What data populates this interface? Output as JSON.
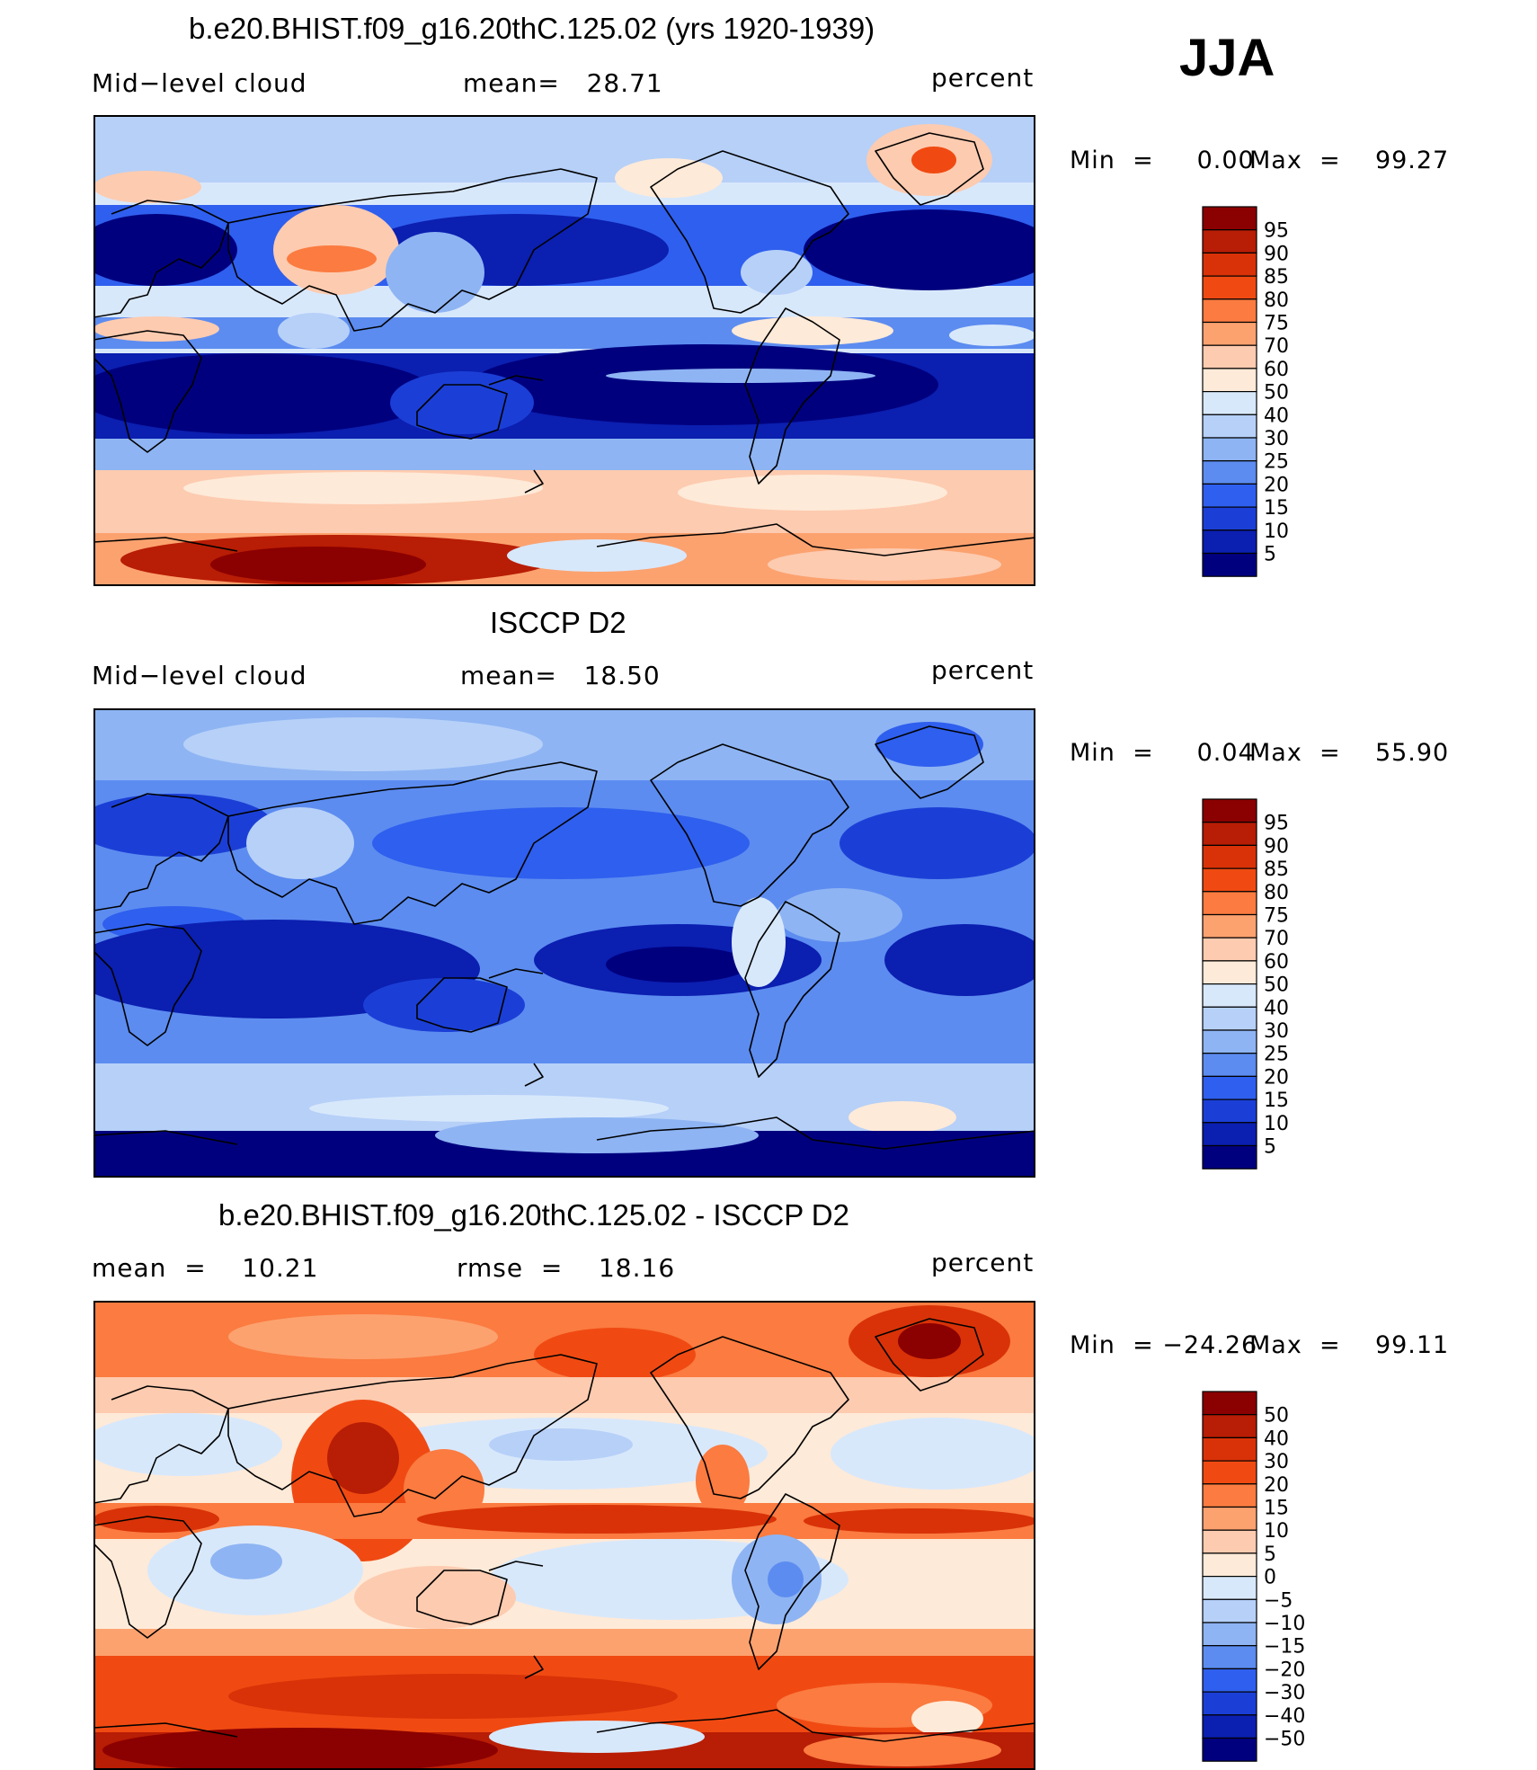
{
  "season": "JJA",
  "chart_data": [
    {
      "type": "heatmap",
      "title": "b.e20.BHIST.f09_g16.20thC.125.02 (yrs 1920-1939)",
      "left_label": "Mid−level cloud",
      "center_label": "mean=   28.71",
      "units": "percent",
      "stats": {
        "min": "0.00",
        "max": "99.27"
      },
      "min_text": "Min  =     0.00",
      "max_text": "Max  =    99.27",
      "colorbar": {
        "levels": [
          "95",
          "90",
          "85",
          "80",
          "75",
          "70",
          "60",
          "50",
          "40",
          "30",
          "25",
          "20",
          "15",
          "10",
          "5"
        ],
        "colors": [
          "#8b0000",
          "#b81d05",
          "#d93208",
          "#f04a12",
          "#fb7b40",
          "#fca26f",
          "#fdcbb0",
          "#feead8",
          "#d8e8fb",
          "#b6d0f8",
          "#8eb4f3",
          "#5c8cf0",
          "#2f5fee",
          "#1b3fd6",
          "#0b1fb0",
          "#00007f"
        ]
      }
    },
    {
      "type": "heatmap",
      "title": "ISCCP D2",
      "left_label": "Mid−level cloud",
      "center_label": "mean=   18.50",
      "units": "percent",
      "stats": {
        "min": "0.04",
        "max": "55.90"
      },
      "min_text": "Min  =     0.04",
      "max_text": "Max  =    55.90",
      "colorbar": {
        "levels": [
          "95",
          "90",
          "85",
          "80",
          "75",
          "70",
          "60",
          "50",
          "40",
          "30",
          "25",
          "20",
          "15",
          "10",
          "5"
        ],
        "colors": [
          "#8b0000",
          "#b81d05",
          "#d93208",
          "#f04a12",
          "#fb7b40",
          "#fca26f",
          "#fdcbb0",
          "#feead8",
          "#d8e8fb",
          "#b6d0f8",
          "#8eb4f3",
          "#5c8cf0",
          "#2f5fee",
          "#1b3fd6",
          "#0b1fb0",
          "#00007f"
        ]
      }
    },
    {
      "type": "heatmap",
      "title": "b.e20.BHIST.f09_g16.20thC.125.02 - ISCCP D2",
      "left_label": "mean  =    10.21",
      "center_label": "rmse  =    18.16",
      "units": "percent",
      "stats": {
        "min": "−24.26",
        "max": "99.11"
      },
      "min_text": "Min  = −24.26",
      "max_text": "Max  =    99.11",
      "colorbar": {
        "levels": [
          "50",
          "40",
          "30",
          "20",
          "15",
          "10",
          "5",
          "0",
          "−5",
          "−10",
          "−15",
          "−20",
          "−30",
          "−40",
          "−50"
        ],
        "colors": [
          "#8b0000",
          "#b81d05",
          "#d93208",
          "#f04a12",
          "#fb7b40",
          "#fca26f",
          "#fdcbb0",
          "#feead8",
          "#d8e8fb",
          "#b6d0f8",
          "#8eb4f3",
          "#5c8cf0",
          "#2f5fee",
          "#1b3fd6",
          "#0b1fb0",
          "#00007f"
        ]
      }
    }
  ]
}
